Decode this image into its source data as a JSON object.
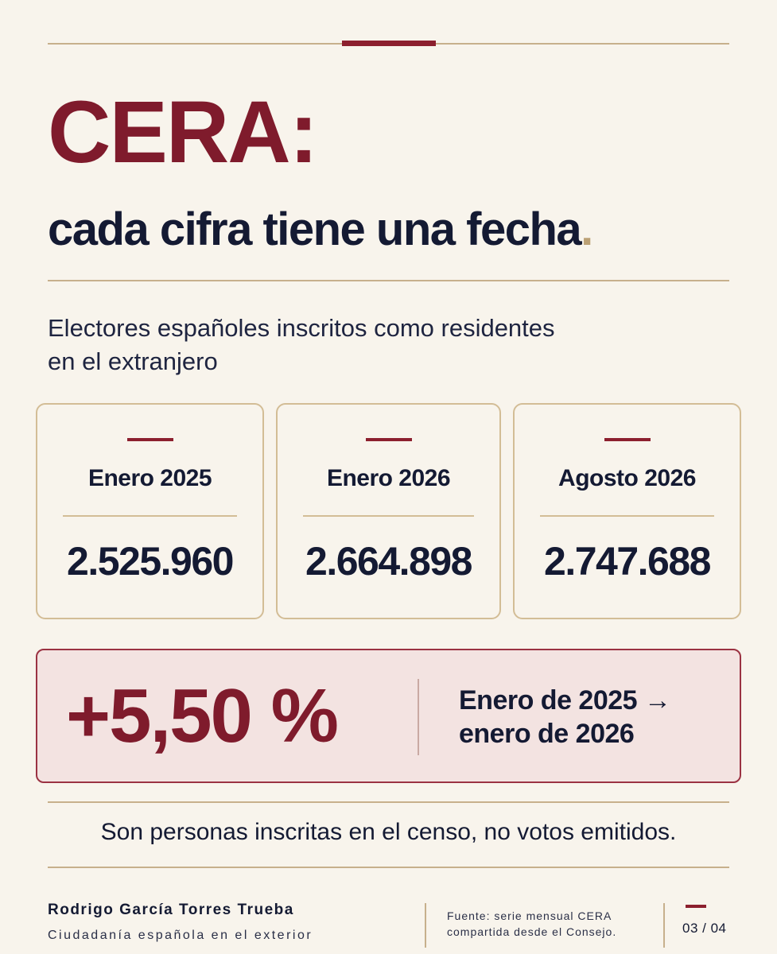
{
  "colors": {
    "background": "#f8f4ec",
    "accent": "#7f1b2c",
    "navy": "#141a33",
    "gold": "#c7b08c",
    "highlight_bg": "#f3e3e1"
  },
  "header": {
    "title": "CERA:",
    "subtitle": "cada cifra tiene una fecha",
    "subtitle_punct": "."
  },
  "description": {
    "line1": "Electores españoles inscritos como residentes",
    "line2": "en el extranjero"
  },
  "stats": [
    {
      "label": "Enero 2025",
      "value": "2.525.960"
    },
    {
      "label": "Enero 2026",
      "value": "2.664.898"
    },
    {
      "label": "Agosto 2026",
      "value": "2.747.688"
    }
  ],
  "growth": {
    "value": "+5,50 %",
    "range_line1": "Enero de 2025 →",
    "range_line2": "enero de 2026"
  },
  "note": "Son personas inscritas en el censo, no votos emitidos.",
  "footer": {
    "author": "Rodrigo García Torres Trueba",
    "role": "Ciudadanía española en el exterior",
    "source_line1": "Fuente: serie mensual CERA",
    "source_line2": "compartida desde el Consejo.",
    "page": "03 / 04"
  }
}
